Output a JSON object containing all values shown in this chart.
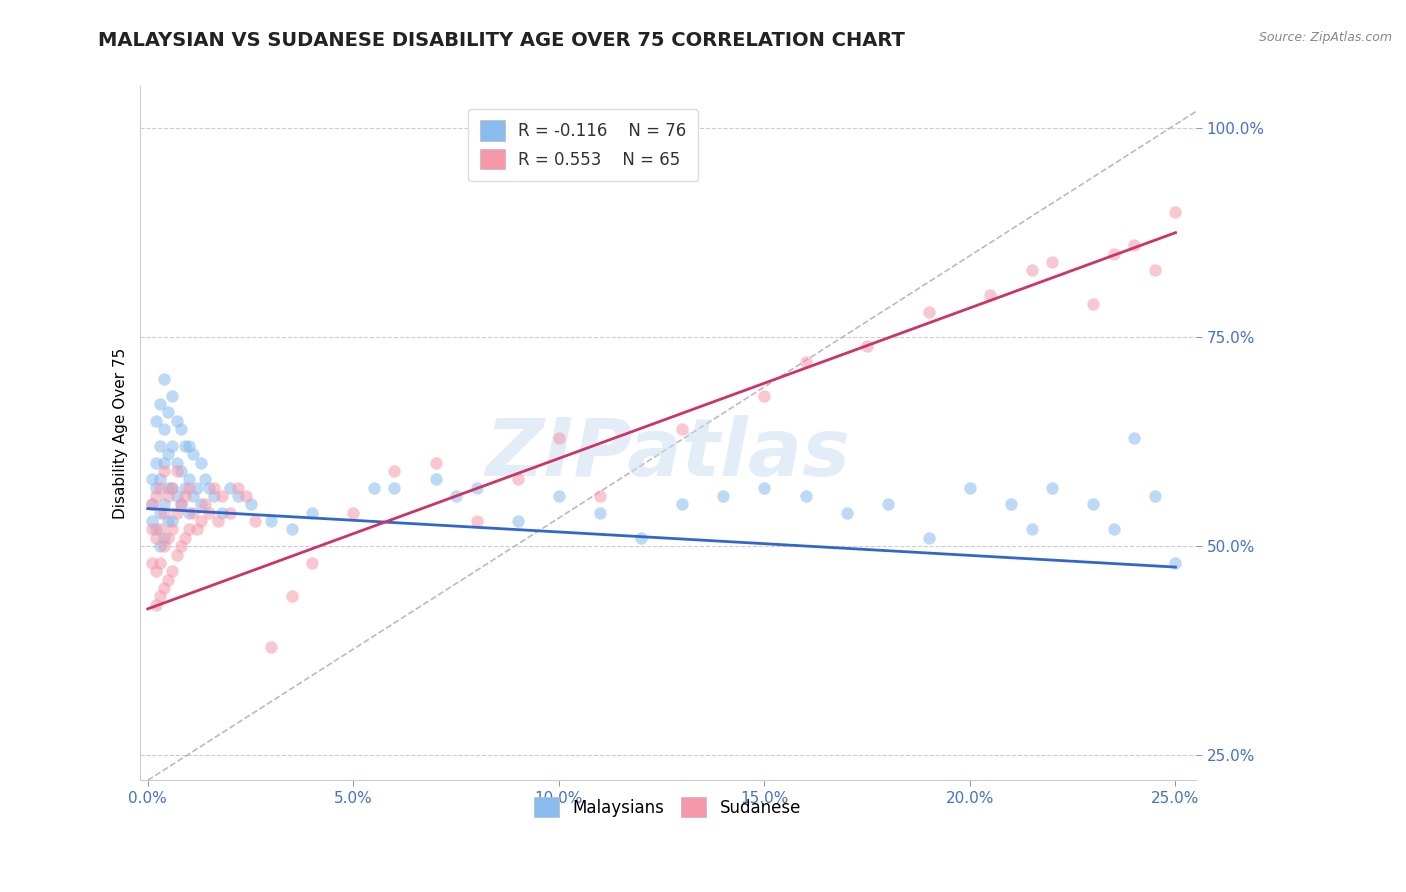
{
  "title": "MALAYSIAN VS SUDANESE DISABILITY AGE OVER 75 CORRELATION CHART",
  "source": "Source: ZipAtlas.com",
  "ylabel": "Disability Age Over 75",
  "xlim": [
    -0.002,
    0.255
  ],
  "ylim": [
    0.22,
    1.05
  ],
  "xticks": [
    0.0,
    0.05,
    0.1,
    0.15,
    0.2,
    0.25
  ],
  "yticks": [
    0.25,
    0.5,
    0.75,
    1.0
  ],
  "title_fontsize": 14,
  "axis_label_fontsize": 11,
  "tick_fontsize": 11,
  "blue_color": "#88bbee",
  "pink_color": "#f599aa",
  "trend_blue": "#3366cc",
  "trend_pink": "#cc3366",
  "legend_R_blue": "R = -0.116",
  "legend_N_blue": "N = 76",
  "legend_R_pink": "R = 0.553",
  "legend_N_pink": "N = 65",
  "watermark": "ZIPatlas",
  "malaysians_label": "Malaysians",
  "sudanese_label": "Sudanese",
  "blue_scatter_x": [
    0.001,
    0.001,
    0.001,
    0.002,
    0.002,
    0.002,
    0.002,
    0.003,
    0.003,
    0.003,
    0.003,
    0.003,
    0.004,
    0.004,
    0.004,
    0.004,
    0.004,
    0.005,
    0.005,
    0.005,
    0.005,
    0.006,
    0.006,
    0.006,
    0.006,
    0.007,
    0.007,
    0.007,
    0.008,
    0.008,
    0.008,
    0.009,
    0.009,
    0.01,
    0.01,
    0.01,
    0.011,
    0.011,
    0.012,
    0.013,
    0.013,
    0.014,
    0.015,
    0.016,
    0.018,
    0.02,
    0.022,
    0.025,
    0.03,
    0.035,
    0.04,
    0.055,
    0.06,
    0.07,
    0.075,
    0.08,
    0.09,
    0.1,
    0.11,
    0.12,
    0.13,
    0.14,
    0.15,
    0.16,
    0.17,
    0.18,
    0.19,
    0.2,
    0.21,
    0.215,
    0.22,
    0.23,
    0.235,
    0.24,
    0.245,
    0.25
  ],
  "blue_scatter_y": [
    0.53,
    0.55,
    0.58,
    0.52,
    0.57,
    0.6,
    0.65,
    0.5,
    0.54,
    0.58,
    0.62,
    0.67,
    0.51,
    0.55,
    0.6,
    0.64,
    0.7,
    0.53,
    0.57,
    0.61,
    0.66,
    0.53,
    0.57,
    0.62,
    0.68,
    0.56,
    0.6,
    0.65,
    0.55,
    0.59,
    0.64,
    0.57,
    0.62,
    0.54,
    0.58,
    0.62,
    0.56,
    0.61,
    0.57,
    0.6,
    0.55,
    0.58,
    0.57,
    0.56,
    0.54,
    0.57,
    0.56,
    0.55,
    0.53,
    0.52,
    0.54,
    0.57,
    0.57,
    0.58,
    0.56,
    0.57,
    0.53,
    0.56,
    0.54,
    0.51,
    0.55,
    0.56,
    0.57,
    0.56,
    0.54,
    0.55,
    0.51,
    0.57,
    0.55,
    0.52,
    0.57,
    0.55,
    0.52,
    0.63,
    0.56,
    0.48
  ],
  "pink_scatter_x": [
    0.001,
    0.001,
    0.001,
    0.002,
    0.002,
    0.002,
    0.002,
    0.003,
    0.003,
    0.003,
    0.003,
    0.004,
    0.004,
    0.004,
    0.004,
    0.005,
    0.005,
    0.005,
    0.006,
    0.006,
    0.006,
    0.007,
    0.007,
    0.007,
    0.008,
    0.008,
    0.009,
    0.009,
    0.01,
    0.01,
    0.011,
    0.012,
    0.013,
    0.014,
    0.015,
    0.016,
    0.017,
    0.018,
    0.02,
    0.022,
    0.024,
    0.026,
    0.03,
    0.035,
    0.04,
    0.05,
    0.06,
    0.07,
    0.08,
    0.09,
    0.1,
    0.11,
    0.13,
    0.15,
    0.16,
    0.175,
    0.19,
    0.205,
    0.215,
    0.22,
    0.23,
    0.235,
    0.24,
    0.245,
    0.25
  ],
  "pink_scatter_y": [
    0.48,
    0.52,
    0.55,
    0.43,
    0.47,
    0.51,
    0.56,
    0.44,
    0.48,
    0.52,
    0.57,
    0.45,
    0.5,
    0.54,
    0.59,
    0.46,
    0.51,
    0.56,
    0.47,
    0.52,
    0.57,
    0.49,
    0.54,
    0.59,
    0.5,
    0.55,
    0.51,
    0.56,
    0.52,
    0.57,
    0.54,
    0.52,
    0.53,
    0.55,
    0.54,
    0.57,
    0.53,
    0.56,
    0.54,
    0.57,
    0.56,
    0.53,
    0.38,
    0.44,
    0.48,
    0.54,
    0.59,
    0.6,
    0.53,
    0.58,
    0.63,
    0.56,
    0.64,
    0.68,
    0.72,
    0.74,
    0.78,
    0.8,
    0.83,
    0.84,
    0.79,
    0.85,
    0.86,
    0.83,
    0.9
  ],
  "blue_trend_x": [
    0.0,
    0.25
  ],
  "blue_trend_y": [
    0.545,
    0.475
  ],
  "pink_trend_x": [
    0.0,
    0.25
  ],
  "pink_trend_y": [
    0.425,
    0.875
  ],
  "diag_line_x": [
    0.0,
    0.255
  ],
  "diag_line_y": [
    0.22,
    1.02
  ],
  "grid_color": "#cccccc",
  "axis_color": "#4472c4",
  "tick_color": "#4472c4",
  "background_color": "#ffffff",
  "marker_size": 80,
  "marker_linewidth": 1.5
}
